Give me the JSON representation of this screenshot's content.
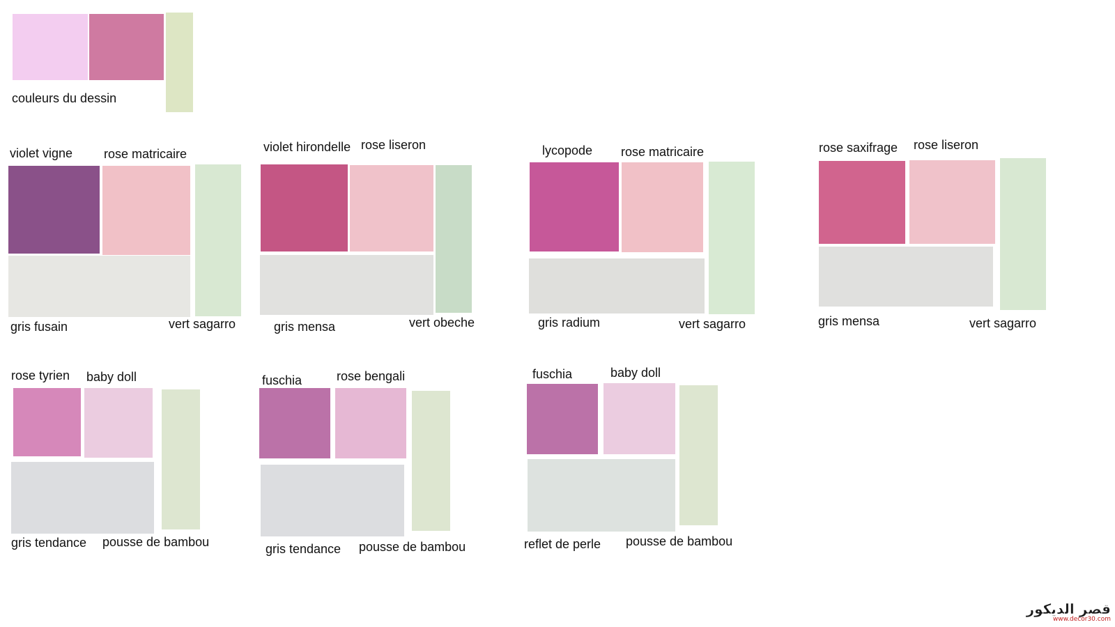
{
  "header": {
    "title": "couleurs du dessin",
    "colors": [
      "#f3cdf0",
      "#cf7aa1",
      "#dde6c4"
    ]
  },
  "palettes": [
    {
      "label_1": "violet vigne",
      "color_1": "#8a5189",
      "label_2": "rose matricaire",
      "color_2": "#f1c1c7",
      "label_3": "gris fusain",
      "color_3": "#e7e7e3",
      "label_4": "vert sagarro",
      "color_4": "#d8e8d2"
    },
    {
      "label_1": "violet hirondelle",
      "color_1": "#c45684",
      "label_2": "rose liseron",
      "color_2": "#f0c2ca",
      "label_3": "gris mensa",
      "color_3": "#e1e1df",
      "label_4": "vert obeche",
      "color_4": "#c8dcc7"
    },
    {
      "label_1": "lycopode",
      "color_1": "#c65899",
      "label_2": "rose matricaire",
      "color_2": "#f1c1c7",
      "label_3": "gris radium",
      "color_3": "#dfdfdc",
      "label_4": "vert sagarro",
      "color_4": "#d8ead3"
    },
    {
      "label_1": "rose saxifrage",
      "color_1": "#d1648e",
      "label_2": "rose liseron",
      "color_2": "#f0c2ca",
      "label_3": "gris mensa",
      "color_3": "#e0e0de",
      "label_4": "vert sagarro",
      "color_4": "#d8e8d2"
    },
    {
      "label_1": "rose tyrien",
      "color_1": "#d688ba",
      "label_2": "baby doll",
      "color_2": "#ebcce0",
      "label_3": "gris tendance",
      "color_3": "#dcdde0",
      "label_4": "pousse de bambou",
      "color_4": "#dde6d0"
    },
    {
      "label_1": "fuschia",
      "color_1": "#bb72a8",
      "label_2": "rose bengali",
      "color_2": "#e6b8d4",
      "label_3": "gris tendance",
      "color_3": "#dcdde0",
      "label_4": "pousse de bambou",
      "color_4": "#dde6d0"
    },
    {
      "label_1": "fuschia",
      "color_1": "#bb72a8",
      "label_2": "baby doll",
      "color_2": "#ebcce0",
      "label_3": "reflet de perle",
      "color_3": "#dde2df",
      "label_4": "pousse de bambou",
      "color_4": "#dde6d0"
    }
  ],
  "watermark": {
    "arabic": "قصر الديكور",
    "url": "www.decor30.com"
  }
}
